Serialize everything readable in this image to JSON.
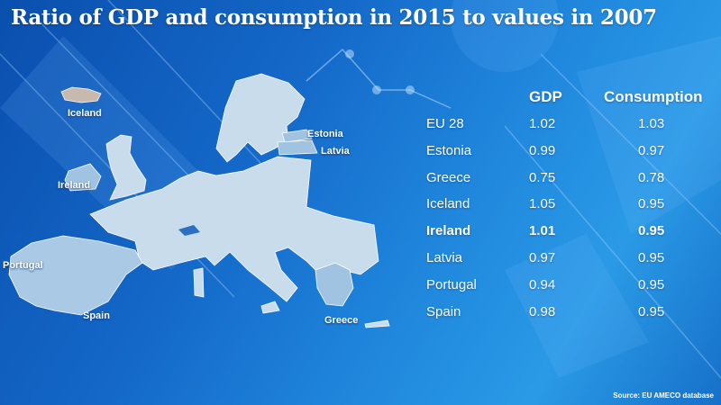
{
  "title": "Ratio of GDP and consumption in 2015 to values in 2007",
  "map_labels": {
    "iceland": "Iceland",
    "ireland": "Ireland",
    "estonia": "Estonia",
    "latvia": "Latvia",
    "portugal": "Portugal",
    "spain": "Spain",
    "greece": "Greece"
  },
  "source": "Source: EU AMECO database",
  "colors": {
    "background": "#1468c8",
    "land": "#c8dcec",
    "highlight": "#9fc3e0",
    "text": "#ffffff"
  },
  "chart_data": {
    "type": "table",
    "title": "Ratio of GDP and consumption in 2015 to values in 2007",
    "columns": [
      "",
      "GDP",
      "Consumption"
    ],
    "rows": [
      {
        "country": "EU 28",
        "gdp": "1.02",
        "consumption": "1.03",
        "bold": false
      },
      {
        "country": "Estonia",
        "gdp": "0.99",
        "consumption": "0.97",
        "bold": false
      },
      {
        "country": "Greece",
        "gdp": "0.75",
        "consumption": "0.78",
        "bold": false
      },
      {
        "country": "Iceland",
        "gdp": "1.05",
        "consumption": "0.95",
        "bold": false
      },
      {
        "country": "Ireland",
        "gdp": "1.01",
        "consumption": "0.95",
        "bold": true
      },
      {
        "country": "Latvia",
        "gdp": "0.97",
        "consumption": "0.95",
        "bold": false
      },
      {
        "country": "Portugal",
        "gdp": "0.94",
        "consumption": "0.95",
        "bold": false
      },
      {
        "country": "Spain",
        "gdp": "0.98",
        "consumption": "0.95",
        "bold": false
      }
    ]
  }
}
